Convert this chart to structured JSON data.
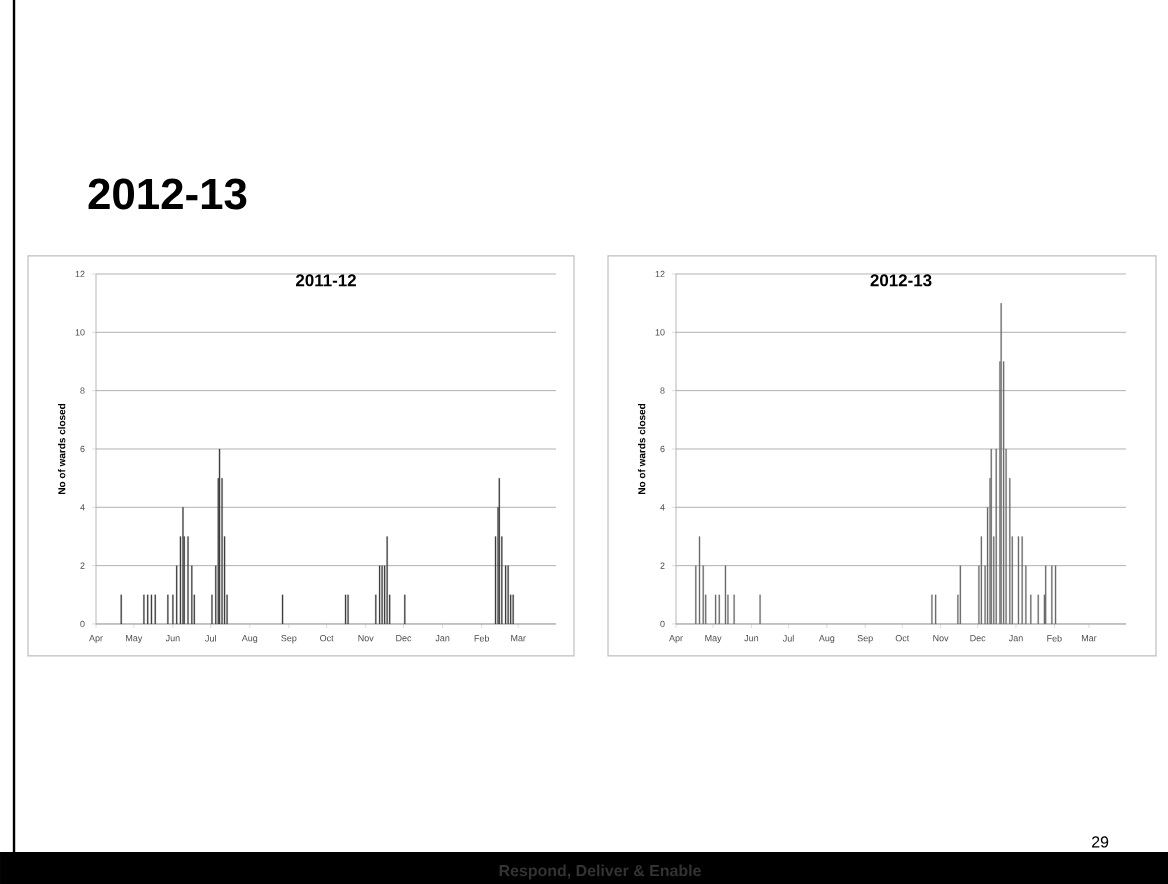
{
  "chart_data": [
    {
      "type": "bar",
      "title": "2011-12",
      "ylabel": "No of wards closed",
      "color": "#3f3f3f",
      "grid": "y",
      "x": [
        "2011-04-21",
        "2011-05-09",
        "2011-05-12",
        "2011-05-15",
        "2011-05-18",
        "2011-05-28",
        "2011-06-01",
        "2011-06-04",
        "2011-06-07",
        "2011-06-09",
        "2011-06-10",
        "2011-06-13",
        "2011-06-16",
        "2011-06-18",
        "2011-07-02",
        "2011-07-05",
        "2011-07-07",
        "2011-07-08",
        "2011-07-10",
        "2011-07-12",
        "2011-07-14",
        "2011-08-27",
        "2011-10-16",
        "2011-10-18",
        "2011-11-09",
        "2011-11-12",
        "2011-11-14",
        "2011-11-16",
        "2011-11-18",
        "2011-11-20",
        "2011-12-02",
        "2012-02-12",
        "2012-02-14",
        "2012-02-15",
        "2012-02-17",
        "2012-02-20",
        "2012-02-22",
        "2012-02-24",
        "2012-02-26"
      ],
      "values": [
        1,
        1,
        1,
        1,
        1,
        1,
        1,
        2,
        3,
        4,
        3,
        3,
        2,
        1,
        1,
        2,
        5,
        6,
        5,
        3,
        1,
        1,
        1,
        1,
        1,
        2,
        2,
        2,
        3,
        1,
        1,
        3,
        4,
        5,
        3,
        2,
        2,
        1,
        1
      ],
      "xlim": [
        "2011-04-01",
        "2012-03-31"
      ],
      "xticks": [
        {
          "value": "2011-04-01",
          "label": "Apr"
        },
        {
          "value": "2011-05-01",
          "label": "May"
        },
        {
          "value": "2011-06-01",
          "label": "Jun"
        },
        {
          "value": "2011-07-01",
          "label": "Jul"
        },
        {
          "value": "2011-08-01",
          "label": "Aug"
        },
        {
          "value": "2011-09-01",
          "label": "Sep"
        },
        {
          "value": "2011-10-01",
          "label": "Oct"
        },
        {
          "value": "2011-11-01",
          "label": "Nov"
        },
        {
          "value": "2011-12-01",
          "label": "Dec"
        },
        {
          "value": "2012-01-01",
          "label": "Jan"
        },
        {
          "value": "2012-02-01",
          "label": "Feb"
        },
        {
          "value": "2012-03-01",
          "label": "Mar"
        }
      ],
      "ylim": [
        0,
        12
      ],
      "yticks": [
        0,
        2,
        4,
        6,
        8,
        10,
        12
      ]
    },
    {
      "type": "bar",
      "title": "2012-13",
      "ylabel": "No of wards closed",
      "color": "#6a6a6a",
      "grid": "y",
      "x": [
        "2012-04-17",
        "2012-04-20",
        "2012-04-23",
        "2012-04-25",
        "2012-05-03",
        "2012-05-06",
        "2012-05-11",
        "2012-05-13",
        "2012-05-18",
        "2012-06-08",
        "2012-10-25",
        "2012-10-28",
        "2012-11-15",
        "2012-11-17",
        "2012-12-02",
        "2012-12-04",
        "2012-12-07",
        "2012-12-09",
        "2012-12-11",
        "2012-12-12",
        "2012-12-14",
        "2012-12-16",
        "2012-12-19",
        "2012-12-20",
        "2012-12-22",
        "2012-12-24",
        "2012-12-27",
        "2012-12-29",
        "2013-01-03",
        "2013-01-06",
        "2013-01-09",
        "2013-01-13",
        "2013-01-19",
        "2013-01-24",
        "2013-01-25",
        "2013-01-30",
        "2013-02-02"
      ],
      "values": [
        2,
        3,
        2,
        1,
        1,
        1,
        2,
        1,
        1,
        1,
        1,
        1,
        1,
        2,
        2,
        3,
        2,
        4,
        5,
        6,
        3,
        6,
        9,
        11,
        9,
        6,
        5,
        3,
        3,
        3,
        2,
        1,
        1,
        1,
        2,
        2,
        2
      ],
      "xlim": [
        "2012-04-01",
        "2013-03-31"
      ],
      "xticks": [
        {
          "value": "2012-04-01",
          "label": "Apr"
        },
        {
          "value": "2012-05-01",
          "label": "May"
        },
        {
          "value": "2012-06-01",
          "label": "Jun"
        },
        {
          "value": "2012-07-01",
          "label": "Jul"
        },
        {
          "value": "2012-08-01",
          "label": "Aug"
        },
        {
          "value": "2012-09-01",
          "label": "Sep"
        },
        {
          "value": "2012-10-01",
          "label": "Oct"
        },
        {
          "value": "2012-11-01",
          "label": "Nov"
        },
        {
          "value": "2012-12-01",
          "label": "Dec"
        },
        {
          "value": "2013-01-01",
          "label": "Jan"
        },
        {
          "value": "2013-02-01",
          "label": "Feb"
        },
        {
          "value": "2013-03-01",
          "label": "Mar"
        }
      ],
      "ylim": [
        0,
        12
      ],
      "yticks": [
        0,
        2,
        4,
        6,
        8,
        10,
        12
      ]
    },
    {
      "type": "other",
      "title": "2012-13",
      "annotations": [
        "29",
        "Respond, Deliver & Enable"
      ]
    }
  ]
}
